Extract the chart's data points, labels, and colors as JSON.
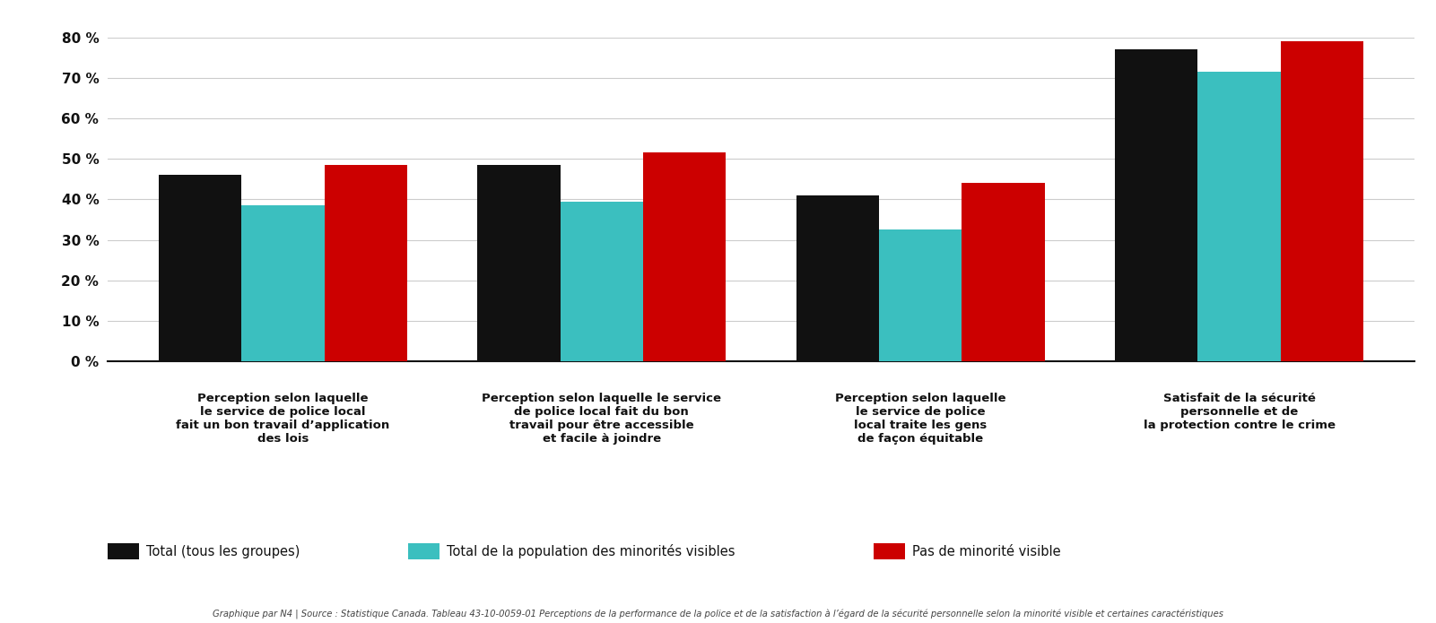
{
  "categories": [
    "Perception selon laquelle\nle service de police local\nfait un bon travail d’application\ndes lois",
    "Perception selon laquelle le service\nde police local fait du bon\ntravail pour être accessible\net facile à joindre",
    "Perception selon laquelle\nle service de police\nlocal traite les gens\nde façon équitable",
    "Satisfait de la sécurité\npersonnelle et de\nla protection contre le crime"
  ],
  "series": {
    "Total (tous les groupes)": [
      46,
      48.5,
      41,
      77
    ],
    "Total de la population des minorités visibles": [
      38.5,
      39.5,
      32.5,
      71.5
    ],
    "Pas de minorité visible": [
      48.5,
      51.5,
      44,
      79
    ]
  },
  "colors": {
    "Total (tous les groupes)": "#111111",
    "Total de la population des minorités visibles": "#3bbfbf",
    "Pas de minorité visible": "#cc0000"
  },
  "ylim": [
    0,
    80
  ],
  "yticks": [
    0,
    10,
    20,
    30,
    40,
    50,
    60,
    70,
    80
  ],
  "ytick_labels": [
    "0 %",
    "10 %",
    "20 %",
    "30 %",
    "40 %",
    "50 %",
    "60 %",
    "70 %",
    "80 %"
  ],
  "background_color": "#ffffff",
  "grid_color": "#cccccc",
  "footnote": "Graphique par N4 | Source : Statistique Canada. Tableau 43-10-0059-01 Perceptions de la performance de la police et de la satisfaction à l’égard de la sécurité personnelle selon la minorité visible et certaines caractéristiques"
}
